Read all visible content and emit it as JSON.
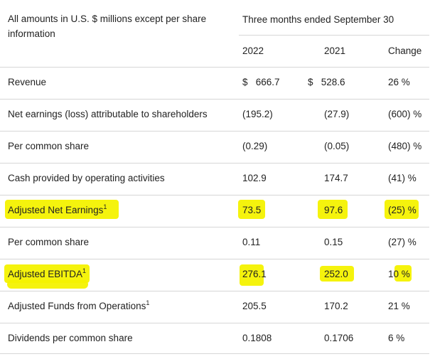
{
  "header": {
    "note": "All amounts in U.S. $ millions except per share information",
    "period": "Three months ended September 30",
    "col_2022": "2022",
    "col_2021": "2021",
    "col_change": "Change"
  },
  "rows": [
    {
      "label": "Revenue",
      "sup": "",
      "c1": "$   666.7",
      "c2": "$   528.6",
      "c3": "26 %"
    },
    {
      "label": "Net earnings (loss) attributable to shareholders",
      "sup": "",
      "c1": "(195.2)",
      "c2": "(27.9)",
      "c3": "(600) %"
    },
    {
      "label": "Per common share",
      "sup": "",
      "c1": "(0.29)",
      "c2": "(0.05)",
      "c3": "(480) %"
    },
    {
      "label": "Cash provided by operating activities",
      "sup": "",
      "c1": "102.9",
      "c2": "174.7",
      "c3": "(41) %"
    },
    {
      "label": "Adjusted Net Earnings",
      "sup": "1",
      "c1": "73.5",
      "c2": "97.6",
      "c3": "(25) %"
    },
    {
      "label": "Per common share",
      "sup": "",
      "c1": "0.11",
      "c2": "0.15",
      "c3": "(27) %"
    },
    {
      "label": "Adjusted EBITDA",
      "sup": "1",
      "c1": "276.1",
      "c2": "252.0",
      "c3": "10 %"
    },
    {
      "label": "Adjusted Funds from Operations",
      "sup": "1",
      "c1": "205.5",
      "c2": "170.2",
      "c3": "21 %"
    },
    {
      "label": "Dividends per common share",
      "sup": "",
      "c1": "0.1808",
      "c2": "0.1706",
      "c3": "6 %"
    }
  ],
  "highlight_color": "#f4f200"
}
